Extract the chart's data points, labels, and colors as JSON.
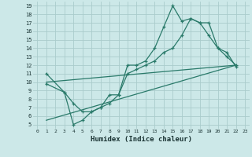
{
  "xlabel": "Humidex (Indice chaleur)",
  "background_color": "#cce8e8",
  "grid_color": "#aacccc",
  "line_color": "#2a7a6a",
  "xlim": [
    -0.5,
    23.5
  ],
  "ylim": [
    4.5,
    19.5
  ],
  "xticks": [
    0,
    1,
    2,
    3,
    4,
    5,
    6,
    7,
    8,
    9,
    10,
    11,
    12,
    13,
    14,
    15,
    16,
    17,
    18,
    19,
    20,
    21,
    22,
    23
  ],
  "yticks": [
    5,
    6,
    7,
    8,
    9,
    10,
    11,
    12,
    13,
    14,
    15,
    16,
    17,
    18,
    19
  ],
  "line1_x": [
    1,
    3,
    4,
    5,
    6,
    7,
    8,
    9,
    10,
    11,
    12,
    13,
    14,
    15,
    16,
    17,
    18,
    19,
    20,
    21,
    22
  ],
  "line1_y": [
    11,
    8.8,
    5,
    5.5,
    6.5,
    7,
    8.5,
    8.5,
    12,
    12,
    12.5,
    14,
    16.5,
    19,
    17.2,
    17.5,
    17,
    15.5,
    14,
    13,
    12
  ],
  "line2_x": [
    1,
    3,
    4,
    5,
    6,
    7,
    8,
    9,
    10,
    11,
    12,
    13,
    14,
    15,
    16,
    17,
    18,
    19,
    20,
    21,
    22
  ],
  "line2_y": [
    9.8,
    8.8,
    7.5,
    6.5,
    6.5,
    7,
    7.5,
    8.5,
    11,
    11.5,
    12,
    12.5,
    13.5,
    14,
    15.5,
    17.5,
    17,
    17,
    14,
    13.5,
    11.8
  ],
  "line3_x": [
    1,
    22
  ],
  "line3_y": [
    10,
    12
  ],
  "line4_x": [
    1,
    22
  ],
  "line4_y": [
    5.5,
    12
  ]
}
